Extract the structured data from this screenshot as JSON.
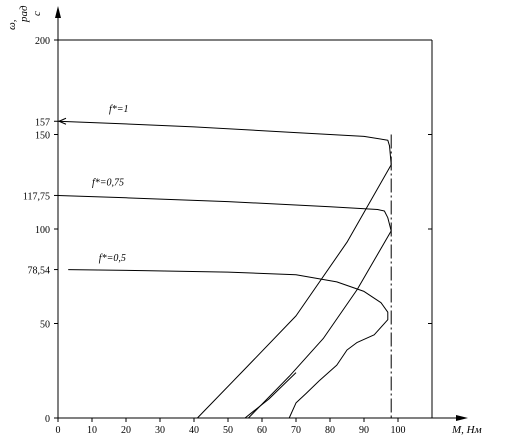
{
  "chart_data": {
    "type": "line",
    "xlabel": "M, Нм",
    "ylabel_omega": "ω,",
    "ylabel_num": "рад",
    "ylabel_den": "с",
    "xlim": [
      0,
      110
    ],
    "ylim": [
      0,
      200
    ],
    "x_ticks": [
      0,
      10,
      20,
      30,
      40,
      50,
      60,
      70,
      80,
      90,
      100
    ],
    "y_ticks": [
      0,
      50,
      100,
      150,
      200
    ],
    "y_special_ticks": [
      {
        "value": 157,
        "label": "157"
      },
      {
        "value": 117.75,
        "label": "117,75"
      },
      {
        "value": 78.54,
        "label": "78,54"
      }
    ],
    "vertical_dashdot_x": 98,
    "annotations": [
      {
        "text": "f*=1",
        "x": 15,
        "y": 162
      },
      {
        "text": "f*=0,75",
        "x": 10,
        "y": 123
      },
      {
        "text": "f*=0,5",
        "x": 12,
        "y": 83
      }
    ],
    "series": [
      {
        "label": "f*=1",
        "points": [
          [
            0,
            157
          ],
          [
            15,
            156
          ],
          [
            40,
            154
          ],
          [
            70,
            151
          ],
          [
            90,
            149
          ],
          [
            97,
            147
          ],
          [
            97.5,
            144
          ],
          [
            98,
            134
          ]
        ]
      },
      {
        "label": "f*=0,75",
        "points": [
          [
            0,
            117.75
          ],
          [
            20,
            116.5
          ],
          [
            50,
            114.5
          ],
          [
            80,
            111.8
          ],
          [
            94,
            110.3
          ],
          [
            96,
            109.5
          ],
          [
            97,
            106
          ],
          [
            98,
            99
          ]
        ]
      },
      {
        "label": "f*=0,5",
        "points": [
          [
            3,
            78.54
          ],
          [
            25,
            78
          ],
          [
            50,
            77.2
          ],
          [
            70,
            75.8
          ],
          [
            82,
            72
          ],
          [
            90,
            67
          ],
          [
            95,
            61
          ],
          [
            97,
            56
          ],
          [
            97,
            52
          ],
          [
            93,
            44
          ],
          [
            88,
            40
          ],
          [
            85,
            36
          ],
          [
            82,
            28
          ],
          [
            77,
            20
          ],
          [
            73,
            13
          ],
          [
            70,
            8
          ],
          [
            68,
            0
          ]
        ]
      },
      {
        "label": "",
        "points": [
          [
            41,
            0
          ],
          [
            55,
            26
          ],
          [
            70,
            54
          ],
          [
            85,
            93
          ],
          [
            98,
            134
          ]
        ]
      },
      {
        "label": "",
        "points": [
          [
            56,
            0
          ],
          [
            68,
            22
          ],
          [
            78,
            42
          ],
          [
            88,
            68
          ],
          [
            98,
            99
          ]
        ]
      },
      {
        "label": "",
        "points": [
          [
            55,
            0
          ],
          [
            62,
            10
          ],
          [
            70,
            24
          ]
        ]
      }
    ]
  }
}
